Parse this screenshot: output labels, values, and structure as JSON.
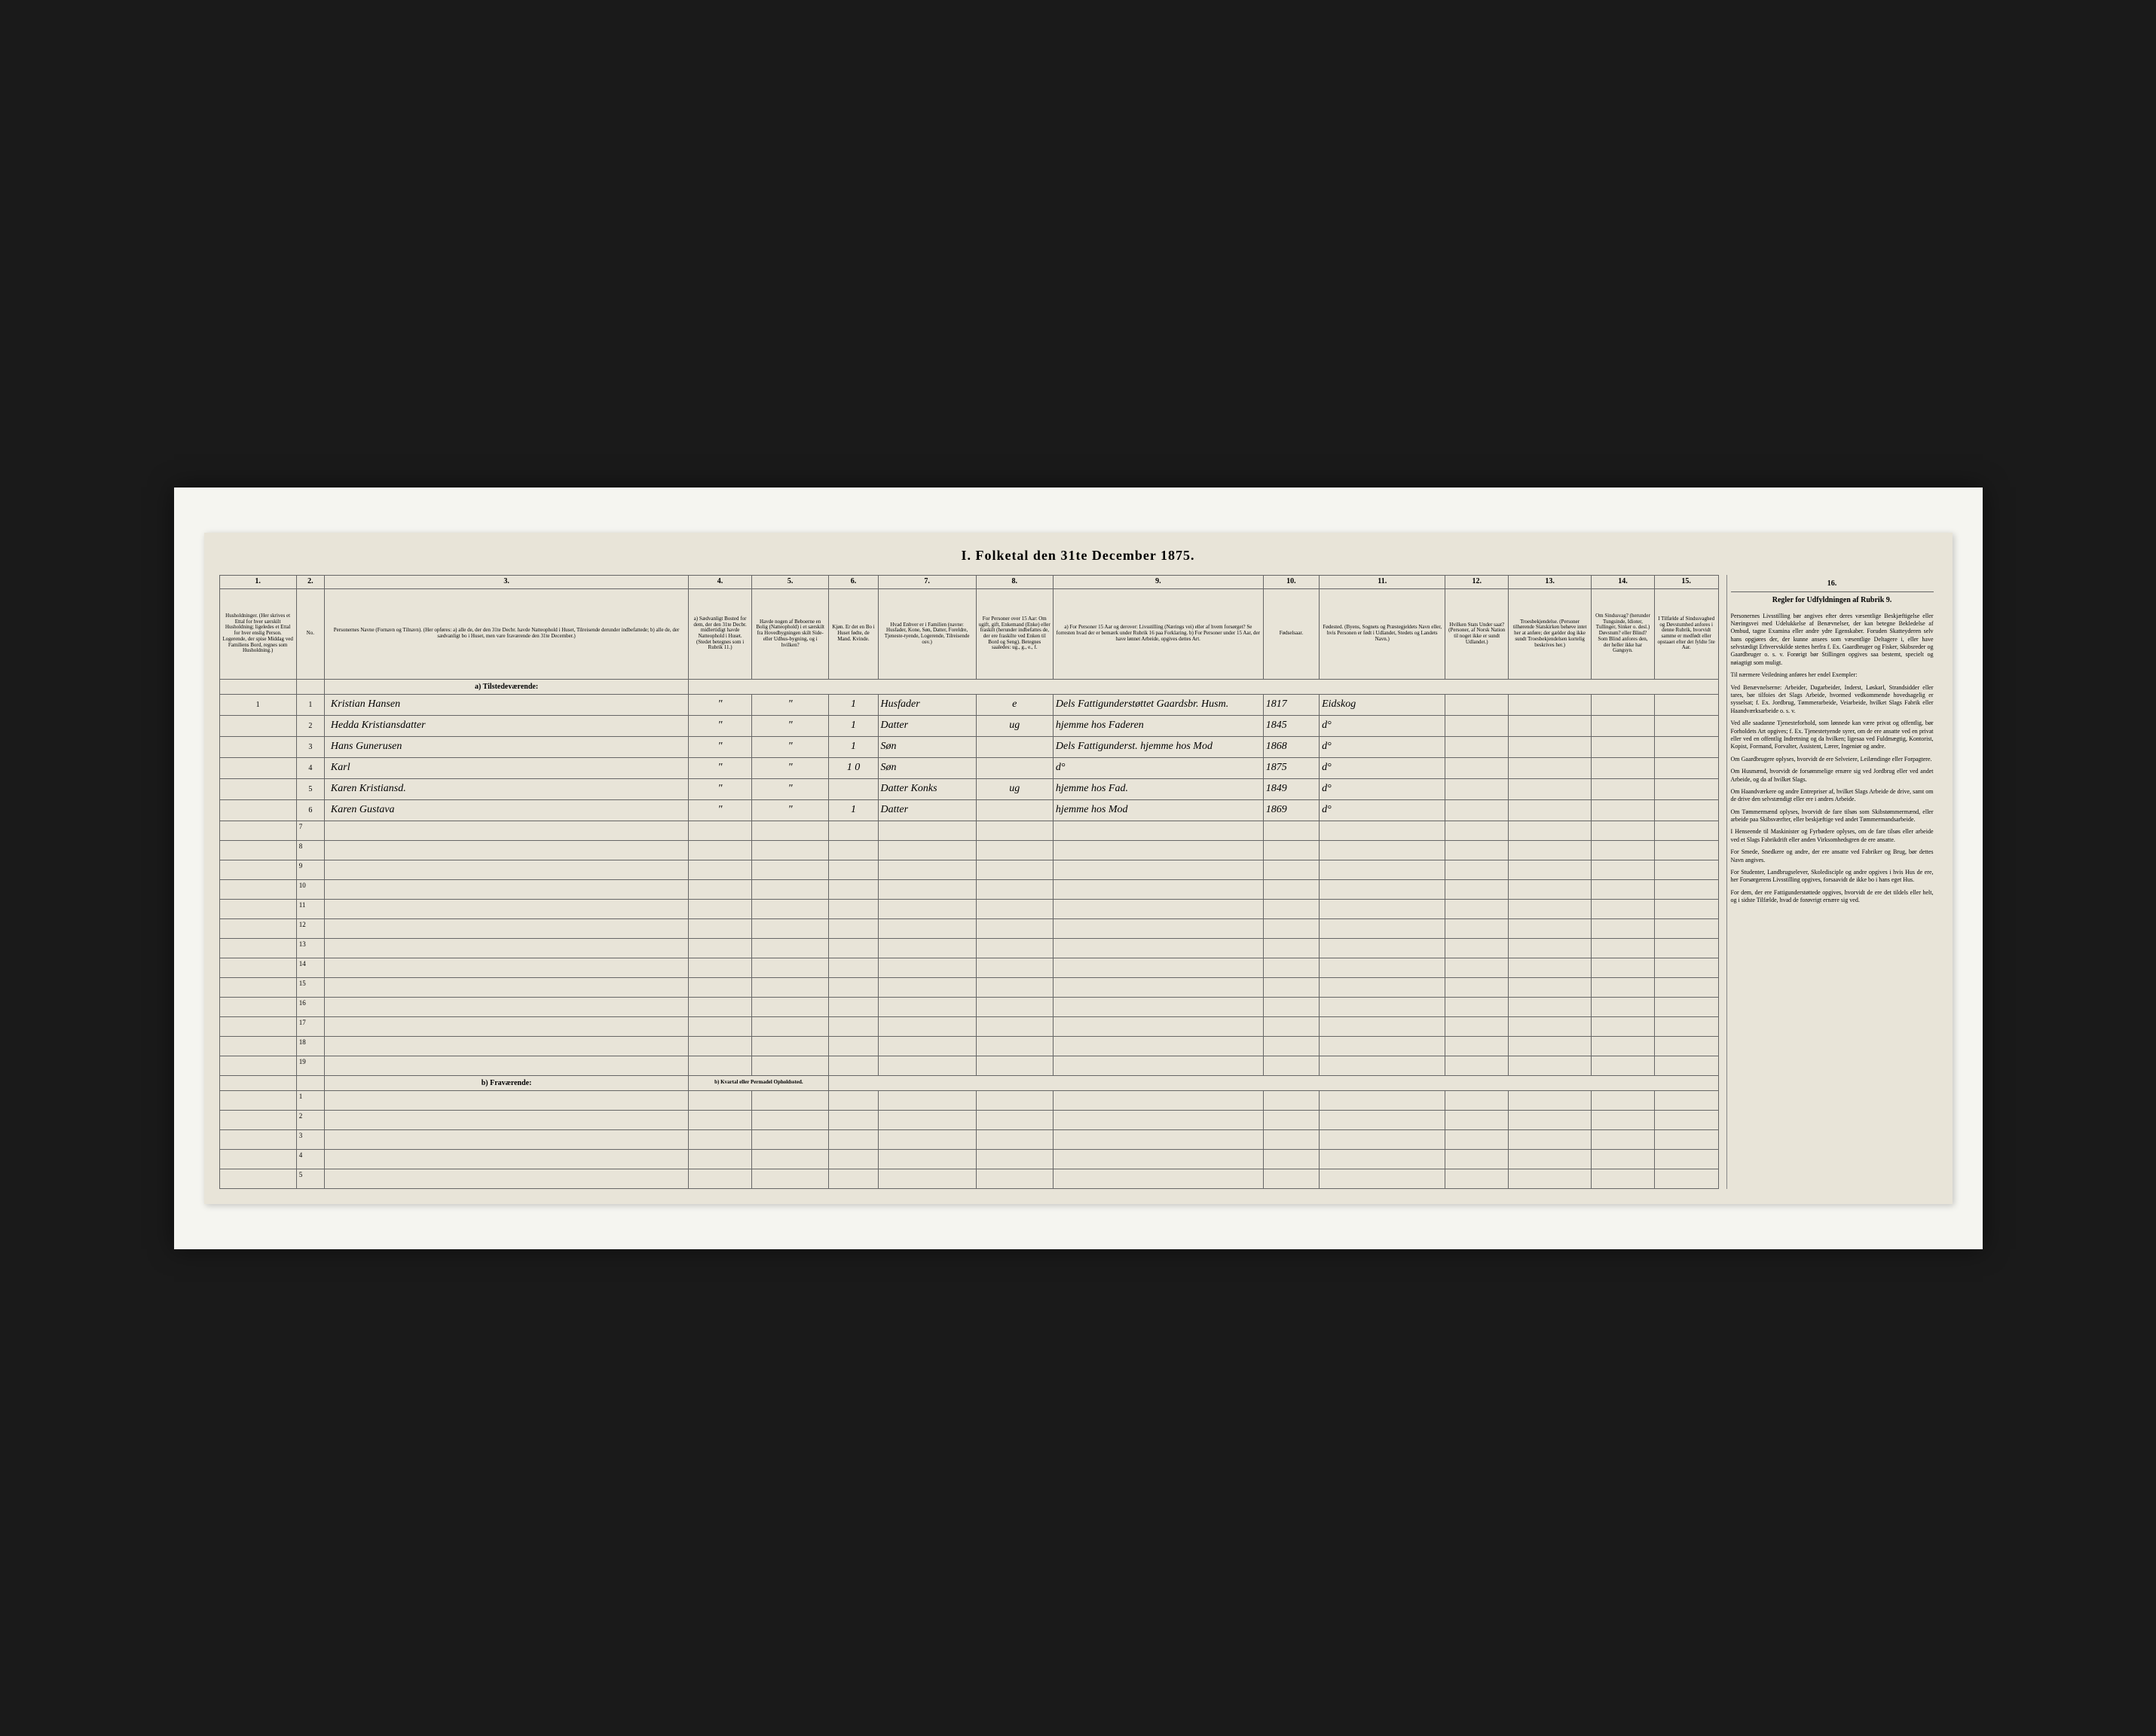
{
  "document": {
    "title": "I. Folketal den 31te December 1875.",
    "column_numbers": [
      "1.",
      "2.",
      "3.",
      "4.",
      "5.",
      "6.",
      "7.",
      "8.",
      "9.",
      "10.",
      "11.",
      "12.",
      "13.",
      "14.",
      "15."
    ],
    "column_headers": {
      "c1": "Husholdninger. (Her skrives et Ettal for hver særskilt Husholdning; ligeledes et Ettal for hver enslig Person. Logerende, der spise Middag ved Familiens Bord, regnes som Husholdning.)",
      "c2": "No.",
      "c3": "Personernes Navne (Fornavn og Tilnavn). (Her opføres: a) alle de, der den 31te Decbr. havde Natteophold i Huset, Tilreisende derunder indbefattede; b) alle de, der sædvanligt bo i Huset, men vare fraværende den 31te December.)",
      "c4": "a) Sædvanligt Bosted for dem, der den 31te Decbr. midlertidigt havde Natteophold i Huset. (Stedet betegnes som i Rubrik 11.)",
      "c5": "Havde nogen af Beboerne en Bolig (Natteophold) i et særskilt fra Hovedbygningen skilt Side- eller Udhus-bygning, og i hvilken?",
      "c6": "Kjøn. Er det en Bo i Huset fødte, de Mand. Kvinde.",
      "c7": "Hvad Enhver er i Familien (navne: Husfader, Kone, Søn, Datter, Foreldre, Tjeneste-tyende, Logerende, Tilreisende osv.)",
      "c8": "For Personer over 15 Aar: Om ugift, gift, Enkemand (Enke) eller fraskilt (herunder indbefattes de, der ere fraskilte ved Enken til Bord og Seng). Betegnes saaledes: ug., g., e., f.",
      "c9": "a) For Personer 15 Aar og derover: Livsstilling (Nærings vei) eller af hvem forsørget? Se forresten hvad der er bemærk under Rubrik 16 paa Forklaring. b) For Personer under 15 Aar, der have lønnet Arbeide, opgives dettes Art.",
      "c10": "Fødselsaar.",
      "c11": "Fødested. (Byens, Sognets og Præstegjeldets Navn eller, hvis Personen er født i Udlandet, Stedets og Landets Navn.)",
      "c12": "Hvilken Stats Under saat? (Personer, af Norsk Nation til noget ikke er sundt Udlandet.)",
      "c13": "Troesbekjendelse. (Personer tilhørende Statskirken behøve intet her at anføre; der gælder dog ikke sundt Troesbekjendelsen kortelig beskrives her.)",
      "c14": "Om Sindssvag? (herunder Tungsinde, Idioter, Tullinger, Sinker o. desl.) Døvstum? eller Blind? Som Blind anfores den, der heller ikke har Gangsyn.",
      "c15": "I Tilfælde af Sindssvaghed og Døvstumhed anfores i denne Rubrik, hvorvidt samme er medfødt eller opstaaet efter det fyldte 5te Aar."
    },
    "section_a": "a) Tilstedeværende:",
    "section_b": "b) Fraværende:",
    "section_b_sub": "b) Kvartal eller Permadel Opholdssted.",
    "rows": [
      {
        "num": "1",
        "hh": "1",
        "name": "Kristian Hansen",
        "c4": "\"",
        "c5": "\"",
        "c6": "1",
        "c7": "Husfader",
        "c8": "e",
        "c9": "Dels Fattigunderstøttet Gaardsbr. Husm.",
        "c10": "1817",
        "c11": "Eidskog"
      },
      {
        "num": "2",
        "hh": "",
        "name": "Hedda Kristiansdatter",
        "c4": "\"",
        "c5": "\"",
        "c6": "1",
        "c7": "Datter",
        "c8": "ug",
        "c9": "hjemme hos Faderen",
        "c10": "1845",
        "c11": "d°"
      },
      {
        "num": "3",
        "hh": "",
        "name": "Hans Gunerusen",
        "c4": "\"",
        "c5": "\"",
        "c6": "1",
        "c7": "Søn",
        "c8": "",
        "c9": "Dels Fattigunderst. hjemme hos Mod",
        "c10": "1868",
        "c11": "d°"
      },
      {
        "num": "4",
        "hh": "",
        "name": "Karl",
        "c4": "\"",
        "c5": "\"",
        "c6": "1 0",
        "c7": "Søn",
        "c8": "",
        "c9": "d°",
        "c10": "1875",
        "c11": "d°"
      },
      {
        "num": "5",
        "hh": "",
        "name": "Karen Kristiansd.",
        "c4": "\"",
        "c5": "\"",
        "c6": "",
        "c7": "Datter Konks",
        "c8": "ug",
        "c9": "hjemme hos Fad.",
        "c10": "1849",
        "c11": "d°"
      },
      {
        "num": "6",
        "hh": "",
        "name": "Karen Gustava",
        "c4": "\"",
        "c5": "\"",
        "c6": "1",
        "c7": "Datter",
        "c8": "",
        "c9": "hjemme hos Mod",
        "c10": "1869",
        "c11": "d°"
      }
    ],
    "empty_rows_a": [
      7,
      8,
      9,
      10,
      11,
      12,
      13,
      14,
      15,
      16,
      17,
      18,
      19
    ],
    "empty_rows_b": [
      1,
      2,
      3,
      4,
      5
    ],
    "sidebar": {
      "header_col": "16.",
      "title": "Regler for Udfyldningen af Rubrik 9.",
      "paragraphs": [
        "Personernes Livsstilling bør angives efter deres væsentlige Beskjæftigelse eller Næringsvei med Udelukkelse af Benævnelser, der kan betegne Bekledelse af Ombud, tagne Examina eller andre ydre Egenskaber. Foruden Skatteyderen selv hans opgjøres der, der kunne ansees som væsentlige Deltagere i, eller have selvstædigt Erhvervskilde stettes herfra f. Ex. Gaardbruger og Fisker, Skibsreder og Gaardbruger o. s. v. Forørigt bør Stillingen opgives saa bestemt, specielt og nøiagtigt som muligt.",
        "Til nærmere Veiledning anføres her endel Exempler:",
        "Ved Benævnelserne: Arbeider, Dagarbeider, Inderst, Løskarl, Strandsidder eller tares, bør tilfoies det Slags Arbeide, hvormed vedkommende hovedsagelig er sysselsat; f. Ex. Jordbrug, Tømmerarbeide, Veiarbeide, hvilket Slags Fabrik eller Haandværksarbeide o. s. v.",
        "Ved alle saadanne Tjenesteforhold, som lønnede kan være privat og offentlig, bør Forholdets Art opgives; f. Ex. Tjenestetyende syrer, om de ere ansatte ved en privat eller ved en offentlig Indretning og da hvilken; ligesaa ved Fuldmægtig, Kontorist, Kopist, Formand, Forvalter, Assistent, Lærer, Ingeniør og andre.",
        "Om Gaardbrugere oplyses, hvorvidt de ere Selveiere, Leilændinge eller Forpagtere.",
        "Om Husmænd, hvorvidt de forsømmelige ernære sig ved Jordbrug eller ved andet Arbeide, og da af hvilket Slags.",
        "Om Haandværkere og andre Entrepriser af, hvilket Slags Arbeide de drive, samt om de drive den selvstændigt eller ere i andres Arbeide.",
        "Om Tømmermænd oplyses, hvorvidt de fare tilsøs som Skibstømmermænd, eller arbeide paa Skibsværfter, eller beskjæftige ved andet Tømmermandsarbeide.",
        "I Henseende til Maskinister og Fyrbødere oplyses, om de fare tilsøs eller arbeide ved et Slags Fabrikdrift eller anden Virksomhedsgren de ere ansatte.",
        "For Smede, Snedkere og andre, der ere ansatte ved Fabriker og Brug, bør dettes Navn angives.",
        "For Studenter, Landbrugselever, Skoledisciple og andre opgives i hvis Hus de ere, her Forsørgerens Livsstilling opgives, forsaavidt de ikke bo i hans eget Hus.",
        "For dem, der ere Fattigunderstøttede opgives, hvorvidt de ere det tildels eller helt, og i sidste Tilfælde, hvad de forøvrigt ernære sig ved."
      ]
    }
  }
}
